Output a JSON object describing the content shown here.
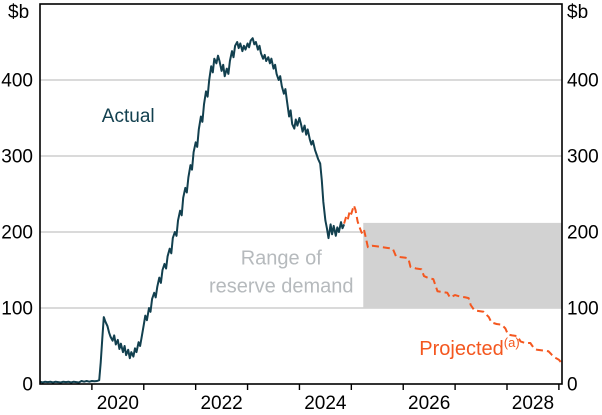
{
  "chart": {
    "left_unit": "$b",
    "right_unit": "$b"
  },
  "chart_data": {
    "type": "line",
    "title": "",
    "unit": "$b",
    "xlim": [
      2019.0,
      2029.06
    ],
    "ylim": [
      0,
      500
    ],
    "yticks": [
      0,
      100,
      200,
      300,
      400
    ],
    "xtick_years": [
      2020,
      2021,
      2022,
      2023,
      2024,
      2025,
      2026,
      2027,
      2028,
      2029
    ],
    "xtick_labels": [
      2020,
      2022,
      2024,
      2026,
      2028
    ],
    "grid": true,
    "colors": {
      "axis": "#000000",
      "grid": "#b4b4b4"
    },
    "band": {
      "label": "Range of reserve demand",
      "x_start": 2025.23,
      "x_end": 2029.06,
      "y_bottom": 100,
      "y_top": 212,
      "fill": "#d2d2d2",
      "label_color": "#b6babd"
    },
    "series": [
      {
        "name": "Actual",
        "color": "#12404f",
        "style": "solid",
        "points": [
          [
            2019.0,
            3
          ],
          [
            2019.05,
            2
          ],
          [
            2019.1,
            3
          ],
          [
            2019.15,
            2.5
          ],
          [
            2019.2,
            3
          ],
          [
            2019.25,
            2
          ],
          [
            2019.3,
            3
          ],
          [
            2019.35,
            2.5
          ],
          [
            2019.4,
            2
          ],
          [
            2019.45,
            3
          ],
          [
            2019.5,
            2.5
          ],
          [
            2019.55,
            3
          ],
          [
            2019.6,
            2
          ],
          [
            2019.65,
            3
          ],
          [
            2019.7,
            2.5
          ],
          [
            2019.75,
            2
          ],
          [
            2019.8,
            4
          ],
          [
            2019.85,
            3
          ],
          [
            2019.9,
            4
          ],
          [
            2019.95,
            3
          ],
          [
            2020.0,
            4
          ],
          [
            2020.05,
            3.5
          ],
          [
            2020.1,
            4
          ],
          [
            2020.14,
            5
          ],
          [
            2020.17,
            28
          ],
          [
            2020.2,
            60
          ],
          [
            2020.23,
            88
          ],
          [
            2020.26,
            82
          ],
          [
            2020.3,
            76
          ],
          [
            2020.33,
            68
          ],
          [
            2020.36,
            62
          ],
          [
            2020.4,
            57
          ],
          [
            2020.43,
            64
          ],
          [
            2020.46,
            52
          ],
          [
            2020.5,
            58
          ],
          [
            2020.53,
            46
          ],
          [
            2020.56,
            53
          ],
          [
            2020.6,
            42
          ],
          [
            2020.63,
            50
          ],
          [
            2020.66,
            38
          ],
          [
            2020.7,
            45
          ],
          [
            2020.73,
            34
          ],
          [
            2020.76,
            42
          ],
          [
            2020.8,
            36
          ],
          [
            2020.83,
            47
          ],
          [
            2020.86,
            42
          ],
          [
            2020.9,
            55
          ],
          [
            2020.93,
            50
          ],
          [
            2020.96,
            62
          ],
          [
            2021.0,
            78
          ],
          [
            2021.03,
            90
          ],
          [
            2021.06,
            84
          ],
          [
            2021.1,
            100
          ],
          [
            2021.13,
            95
          ],
          [
            2021.16,
            112
          ],
          [
            2021.2,
            120
          ],
          [
            2021.23,
            114
          ],
          [
            2021.26,
            128
          ],
          [
            2021.3,
            140
          ],
          [
            2021.33,
            133
          ],
          [
            2021.36,
            150
          ],
          [
            2021.4,
            158
          ],
          [
            2021.43,
            152
          ],
          [
            2021.46,
            168
          ],
          [
            2021.5,
            178
          ],
          [
            2021.53,
            172
          ],
          [
            2021.56,
            192
          ],
          [
            2021.6,
            200
          ],
          [
            2021.63,
            195
          ],
          [
            2021.66,
            215
          ],
          [
            2021.7,
            228
          ],
          [
            2021.73,
            222
          ],
          [
            2021.76,
            245
          ],
          [
            2021.8,
            258
          ],
          [
            2021.83,
            252
          ],
          [
            2021.86,
            272
          ],
          [
            2021.9,
            288
          ],
          [
            2021.93,
            282
          ],
          [
            2021.96,
            305
          ],
          [
            2022.0,
            318
          ],
          [
            2022.03,
            312
          ],
          [
            2022.06,
            335
          ],
          [
            2022.1,
            352
          ],
          [
            2022.13,
            345
          ],
          [
            2022.16,
            368
          ],
          [
            2022.2,
            385
          ],
          [
            2022.23,
            378
          ],
          [
            2022.26,
            400
          ],
          [
            2022.3,
            418
          ],
          [
            2022.33,
            410
          ],
          [
            2022.36,
            428
          ],
          [
            2022.4,
            422
          ],
          [
            2022.43,
            432
          ],
          [
            2022.46,
            425
          ],
          [
            2022.5,
            412
          ],
          [
            2022.53,
            420
          ],
          [
            2022.56,
            405
          ],
          [
            2022.6,
            415
          ],
          [
            2022.63,
            408
          ],
          [
            2022.66,
            425
          ],
          [
            2022.7,
            438
          ],
          [
            2022.73,
            430
          ],
          [
            2022.76,
            445
          ],
          [
            2022.8,
            450
          ],
          [
            2022.83,
            442
          ],
          [
            2022.86,
            448
          ],
          [
            2022.9,
            438
          ],
          [
            2022.93,
            445
          ],
          [
            2022.96,
            440
          ],
          [
            2023.0,
            448
          ],
          [
            2023.03,
            443
          ],
          [
            2023.06,
            452
          ],
          [
            2023.1,
            455
          ],
          [
            2023.13,
            447
          ],
          [
            2023.16,
            450
          ],
          [
            2023.2,
            440
          ],
          [
            2023.23,
            445
          ],
          [
            2023.26,
            435
          ],
          [
            2023.3,
            428
          ],
          [
            2023.33,
            433
          ],
          [
            2023.36,
            425
          ],
          [
            2023.4,
            430
          ],
          [
            2023.43,
            422
          ],
          [
            2023.46,
            428
          ],
          [
            2023.5,
            415
          ],
          [
            2023.53,
            420
          ],
          [
            2023.56,
            408
          ],
          [
            2023.6,
            400
          ],
          [
            2023.63,
            405
          ],
          [
            2023.66,
            392
          ],
          [
            2023.7,
            382
          ],
          [
            2023.73,
            388
          ],
          [
            2023.76,
            372
          ],
          [
            2023.8,
            352
          ],
          [
            2023.83,
            360
          ],
          [
            2023.86,
            342
          ],
          [
            2023.9,
            336
          ],
          [
            2023.93,
            348
          ],
          [
            2023.96,
            340
          ],
          [
            2024.0,
            350
          ],
          [
            2024.03,
            342
          ],
          [
            2024.06,
            332
          ],
          [
            2024.1,
            340
          ],
          [
            2024.13,
            328
          ],
          [
            2024.16,
            335
          ],
          [
            2024.2,
            322
          ],
          [
            2024.23,
            315
          ],
          [
            2024.26,
            320
          ],
          [
            2024.3,
            308
          ],
          [
            2024.33,
            302
          ],
          [
            2024.36,
            296
          ],
          [
            2024.4,
            290
          ],
          [
            2024.43,
            268
          ],
          [
            2024.46,
            240
          ],
          [
            2024.5,
            215
          ],
          [
            2024.53,
            205
          ],
          [
            2024.56,
            192
          ],
          [
            2024.6,
            210
          ],
          [
            2024.63,
            197
          ],
          [
            2024.66,
            208
          ],
          [
            2024.7,
            195
          ],
          [
            2024.73,
            206
          ],
          [
            2024.76,
            200
          ],
          [
            2024.8,
            213
          ],
          [
            2024.83,
            205
          ],
          [
            2024.86,
            210
          ]
        ]
      },
      {
        "name": "Projected",
        "color": "#f4571f",
        "style": "dashed",
        "points": [
          [
            2024.86,
            211
          ],
          [
            2024.9,
            220
          ],
          [
            2024.93,
            216
          ],
          [
            2024.97,
            228
          ],
          [
            2025.0,
            224
          ],
          [
            2025.05,
            235
          ],
          [
            2025.08,
            229
          ],
          [
            2025.12,
            214
          ],
          [
            2025.16,
            206
          ],
          [
            2025.2,
            199
          ],
          [
            2025.24,
            204
          ],
          [
            2025.28,
            192
          ],
          [
            2025.32,
            180
          ],
          [
            2025.4,
            182
          ],
          [
            2025.5,
            181
          ],
          [
            2025.6,
            180
          ],
          [
            2025.7,
            179
          ],
          [
            2025.8,
            178
          ],
          [
            2025.86,
            168
          ],
          [
            2025.95,
            167
          ],
          [
            2026.05,
            166
          ],
          [
            2026.1,
            165
          ],
          [
            2026.14,
            154
          ],
          [
            2026.25,
            152
          ],
          [
            2026.35,
            151
          ],
          [
            2026.4,
            142
          ],
          [
            2026.5,
            139
          ],
          [
            2026.58,
            138
          ],
          [
            2026.62,
            130
          ],
          [
            2026.66,
            122
          ],
          [
            2026.75,
            121
          ],
          [
            2026.85,
            120
          ],
          [
            2026.9,
            114
          ],
          [
            2027.0,
            117
          ],
          [
            2027.1,
            115
          ],
          [
            2027.2,
            114
          ],
          [
            2027.26,
            113
          ],
          [
            2027.3,
            104
          ],
          [
            2027.37,
            97
          ],
          [
            2027.45,
            96
          ],
          [
            2027.55,
            95
          ],
          [
            2027.65,
            88
          ],
          [
            2027.7,
            81
          ],
          [
            2027.8,
            79
          ],
          [
            2027.9,
            78
          ],
          [
            2027.97,
            73
          ],
          [
            2028.02,
            65
          ],
          [
            2028.1,
            64
          ],
          [
            2028.2,
            63
          ],
          [
            2028.26,
            56
          ],
          [
            2028.35,
            54
          ],
          [
            2028.45,
            54
          ],
          [
            2028.52,
            47
          ],
          [
            2028.58,
            45
          ],
          [
            2028.7,
            44
          ],
          [
            2028.8,
            43
          ],
          [
            2028.87,
            38
          ],
          [
            2028.92,
            35
          ],
          [
            2029.0,
            32
          ],
          [
            2029.06,
            27
          ]
        ]
      }
    ],
    "annotations": [
      {
        "id": "actual-label",
        "text": "Actual",
        "x": 2020.7,
        "y": 345,
        "color": "#12404f",
        "size": 19,
        "anchor": "middle"
      },
      {
        "id": "band-label",
        "lines": [
          "Range of",
          "reserve demand"
        ],
        "x": 2023.65,
        "y": 157,
        "line_height": 28,
        "color": "#b6babd",
        "size": 20,
        "anchor": "middle"
      },
      {
        "id": "projected-label",
        "text": "Projected",
        "sup": "(a)",
        "x": 2026.31,
        "y": 38,
        "color": "#f4571f",
        "size": 20,
        "anchor": "start"
      }
    ]
  }
}
